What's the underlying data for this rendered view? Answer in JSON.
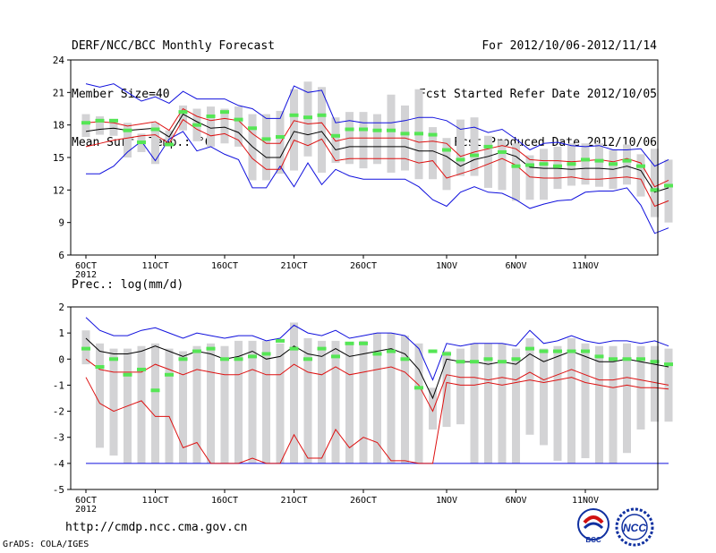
{
  "header": {
    "title": "DERF/NCC/BCC Monthly Forecast",
    "member_size": "Member Size=40",
    "variable": "Mean Surf. Temp.: °C",
    "period": "For 2012/10/06-2012/11/14",
    "started": "Fcst Started Refer Date 2012/10/05",
    "produced": "Fcst Produced Date 2012/10/06"
  },
  "footer": {
    "url": "http://cmdp.ncc.cma.gov.cn",
    "grads": "GrADS: COLA/IGES",
    "logo_bcc": "BCC",
    "logo_ncc": "NCC"
  },
  "colors": {
    "box": "#d3d3d5",
    "median": "#55e655",
    "mean": "#000000",
    "inner": "#dd1111",
    "outer": "#1010dd"
  },
  "chart_data": [
    {
      "type": "box-ensemble",
      "title": "Mean Surf. Temp.: °C",
      "ylim": [
        6,
        24
      ],
      "yticks": [
        6,
        9,
        12,
        15,
        18,
        21,
        24
      ],
      "xticks": [
        {
          "label": "6OCT",
          "sub": "2012",
          "day": 0
        },
        {
          "label": "11OCT",
          "day": 5
        },
        {
          "label": "16OCT",
          "day": 10
        },
        {
          "label": "21OCT",
          "day": 15
        },
        {
          "label": "26OCT",
          "day": 20
        },
        {
          "label": "1NOV",
          "day": 26
        },
        {
          "label": "6NOV",
          "day": 31
        },
        {
          "label": "11NOV",
          "day": 36
        }
      ],
      "series": {
        "mean": [
          17.4,
          17.6,
          17.7,
          17.5,
          17.6,
          17.7,
          16.9,
          19.0,
          18.3,
          17.7,
          17.8,
          17.3,
          16.0,
          15.0,
          15.0,
          17.4,
          17.1,
          17.4,
          15.7,
          16.0,
          16.0,
          16.0,
          16.0,
          16.0,
          15.6,
          15.6,
          15.1,
          14.2,
          14.8,
          15.1,
          15.5,
          15.1,
          14.1,
          14.0,
          14.0,
          13.9,
          14.0,
          14.0,
          13.9,
          14.2,
          13.8,
          11.8,
          12.2
        ],
        "upper1": [
          18.2,
          18.3,
          18.2,
          17.9,
          18.1,
          18.3,
          17.5,
          19.5,
          18.8,
          18.4,
          18.6,
          18.4,
          17.2,
          16.3,
          16.3,
          18.4,
          18.1,
          18.2,
          16.5,
          16.8,
          16.8,
          16.8,
          16.8,
          16.8,
          16.4,
          16.5,
          16.3,
          15.1,
          15.5,
          15.8,
          16.1,
          15.8,
          14.8,
          14.7,
          14.7,
          14.6,
          14.7,
          14.8,
          14.6,
          14.9,
          14.5,
          12.3,
          12.9
        ],
        "lower1": [
          16.0,
          16.3,
          16.6,
          16.8,
          17.0,
          17.1,
          16.3,
          18.5,
          17.6,
          17.0,
          17.2,
          16.6,
          14.9,
          13.9,
          13.9,
          16.6,
          16.1,
          16.7,
          14.7,
          14.9,
          14.9,
          14.9,
          14.9,
          14.9,
          14.5,
          14.7,
          13.1,
          13.5,
          13.9,
          14.4,
          14.9,
          14.3,
          13.2,
          13.1,
          13.1,
          13.2,
          13.0,
          13.0,
          13.1,
          13.2,
          13.0,
          10.5,
          11.0
        ],
        "upper2": [
          21.8,
          21.5,
          21.8,
          21.0,
          20.2,
          20.6,
          20.0,
          21.1,
          20.4,
          20.4,
          20.4,
          19.8,
          19.5,
          18.6,
          18.6,
          21.6,
          21.0,
          21.2,
          18.2,
          18.4,
          18.2,
          18.2,
          18.2,
          18.4,
          18.7,
          18.7,
          18.4,
          17.6,
          17.8,
          17.3,
          17.6,
          16.7,
          15.7,
          16.3,
          16.4,
          16.1,
          16.0,
          16.1,
          15.7,
          15.7,
          15.8,
          14.2,
          14.8
        ],
        "lower2": [
          13.5,
          13.5,
          14.2,
          15.5,
          16.5,
          14.7,
          16.7,
          17.4,
          15.6,
          16.0,
          15.3,
          14.8,
          12.2,
          12.2,
          14.2,
          12.3,
          14.5,
          12.5,
          13.9,
          13.3,
          13.0,
          13.0,
          13.0,
          13.0,
          12.3,
          11.1,
          10.5,
          11.8,
          12.3,
          11.8,
          11.7,
          11.1,
          10.3,
          10.7,
          11.0,
          11.1,
          11.8,
          11.9,
          11.9,
          12.2,
          10.6,
          8.0,
          8.5
        ],
        "box_hi": [
          19.0,
          18.8,
          18.5,
          18.2,
          17.2,
          18.2,
          17.5,
          19.8,
          19.5,
          19.7,
          19.5,
          19.7,
          19.0,
          19.0,
          19.3,
          21.3,
          22.0,
          21.5,
          18.7,
          19.2,
          19.2,
          19.0,
          20.8,
          19.8,
          21.3,
          17.8,
          16.8,
          18.5,
          18.7,
          17.0,
          16.6,
          16.3,
          15.2,
          15.8,
          16.0,
          16.3,
          16.3,
          16.3,
          15.7,
          16.2,
          15.3,
          15.8,
          14.8
        ],
        "box_lo": [
          16.9,
          17.1,
          17.0,
          15.0,
          15.5,
          14.4,
          16.5,
          17.5,
          16.5,
          16.0,
          16.3,
          16.0,
          12.9,
          12.9,
          13.5,
          13.8,
          15.1,
          13.6,
          14.5,
          14.4,
          14.0,
          14.4,
          13.6,
          13.8,
          13.0,
          13.0,
          12.0,
          13.3,
          13.3,
          12.2,
          12.0,
          11.0,
          11.1,
          11.1,
          12.1,
          12.4,
          12.5,
          12.3,
          12.1,
          12.5,
          11.4,
          9.5,
          9.0
        ],
        "median": [
          18.2,
          18.4,
          18.4,
          17.5,
          16.4,
          17.6,
          16.2,
          19.2,
          18.0,
          18.8,
          19.2,
          18.5,
          17.7,
          16.7,
          16.9,
          18.9,
          18.7,
          18.9,
          17.0,
          17.6,
          17.6,
          17.5,
          17.5,
          17.2,
          17.2,
          17.1,
          15.7,
          14.8,
          15.2,
          16.0,
          15.5,
          14.2,
          14.3,
          14.4,
          14.2,
          14.4,
          14.8,
          14.7,
          14.4,
          14.7,
          14.2,
          12.0,
          12.4
        ]
      }
    },
    {
      "type": "box-ensemble",
      "title": "Prec.: log(mm/d)",
      "ylim": [
        -5,
        2
      ],
      "yticks": [
        -5,
        -4,
        -3,
        -2,
        -1,
        0,
        1,
        2
      ],
      "xticks": [
        {
          "label": "6OCT",
          "sub": "2012",
          "day": 0
        },
        {
          "label": "11OCT",
          "day": 5
        },
        {
          "label": "16OCT",
          "day": 10
        },
        {
          "label": "21OCT",
          "day": 15
        },
        {
          "label": "26OCT",
          "day": 20
        },
        {
          "label": "1NOV",
          "day": 26
        },
        {
          "label": "6NOV",
          "day": 31
        },
        {
          "label": "11NOV",
          "day": 36
        }
      ],
      "series": {
        "mean": [
          0.8,
          0.3,
          0.2,
          0.2,
          0.3,
          0.5,
          0.3,
          0.1,
          0.3,
          0.2,
          0.0,
          0.1,
          0.3,
          0.0,
          0.1,
          0.5,
          0.2,
          0.1,
          0.4,
          0.1,
          0.2,
          0.3,
          0.4,
          0.2,
          -0.4,
          -1.5,
          0.0,
          -0.1,
          -0.1,
          -0.2,
          -0.1,
          -0.2,
          0.2,
          -0.1,
          0.1,
          0.3,
          0.1,
          -0.1,
          -0.1,
          0.0,
          -0.1,
          -0.2,
          -0.3
        ],
        "upper": [
          1.6,
          1.1,
          0.9,
          0.9,
          1.1,
          1.2,
          1.0,
          0.8,
          1.0,
          0.9,
          0.8,
          0.9,
          0.9,
          0.7,
          0.8,
          1.3,
          1.0,
          0.9,
          1.1,
          0.8,
          0.9,
          1.0,
          1.0,
          0.9,
          0.4,
          -0.8,
          0.6,
          0.5,
          0.6,
          0.6,
          0.6,
          0.5,
          1.1,
          0.6,
          0.7,
          0.9,
          0.7,
          0.6,
          0.7,
          0.7,
          0.6,
          0.7,
          0.5
        ],
        "lower1": [
          0.0,
          -0.4,
          -0.5,
          -0.5,
          -0.5,
          -0.2,
          -0.4,
          -0.6,
          -0.4,
          -0.5,
          -0.6,
          -0.6,
          -0.4,
          -0.6,
          -0.6,
          -0.2,
          -0.5,
          -0.6,
          -0.3,
          -0.6,
          -0.5,
          -0.4,
          -0.3,
          -0.5,
          -1.0,
          -2.0,
          -0.6,
          -0.7,
          -0.7,
          -0.8,
          -0.7,
          -0.8,
          -0.5,
          -0.8,
          -0.6,
          -0.4,
          -0.6,
          -0.8,
          -0.8,
          -0.7,
          -0.8,
          -0.9,
          -1.0
        ],
        "lower2": [
          -0.7,
          -1.7,
          -2.0,
          -1.8,
          -1.6,
          -2.2,
          -2.2,
          -3.4,
          -3.2,
          -4.0,
          -4.0,
          -4.0,
          -3.8,
          -4.0,
          -4.0,
          -2.9,
          -3.8,
          -3.8,
          -2.7,
          -3.4,
          -3.0,
          -3.2,
          -3.9,
          -3.9,
          -4.0,
          -4.0,
          -0.9,
          -1.0,
          -1.0,
          -0.9,
          -1.0,
          -0.9,
          -0.8,
          -0.9,
          -0.8,
          -0.7,
          -0.9,
          -1.0,
          -1.1,
          -1.0,
          -1.1,
          -1.1,
          -1.15
        ],
        "lower3": [
          -4,
          -4,
          -4,
          -4,
          -4,
          -4,
          -4,
          -4,
          -4,
          -4,
          -4,
          -4,
          -4,
          -4,
          -4,
          -4,
          -4,
          -4,
          -4,
          -4,
          -4,
          -4,
          -4,
          -4,
          -4,
          -4,
          -4,
          -4,
          -4,
          -4,
          -4,
          -4,
          -4,
          -4,
          -4,
          -4,
          -4,
          -4,
          -4,
          -4,
          -4,
          -4,
          -4
        ],
        "box_hi": [
          1.1,
          0.6,
          0.4,
          0.4,
          0.5,
          0.6,
          0.4,
          0.3,
          0.5,
          0.6,
          0.5,
          0.7,
          0.7,
          0.7,
          0.6,
          1.4,
          0.8,
          0.7,
          0.7,
          0.6,
          0.7,
          1.0,
          1.0,
          0.9,
          0.6,
          -1.1,
          0.3,
          0.4,
          0.6,
          0.6,
          0.6,
          0.4,
          0.8,
          0.4,
          0.5,
          0.8,
          0.6,
          0.5,
          0.5,
          0.6,
          0.5,
          0.5,
          0.4
        ],
        "box_lo": [
          -0.2,
          -3.4,
          -3.7,
          -4.0,
          -4.0,
          -4.0,
          -4.0,
          -4.0,
          -4.0,
          -4.0,
          -4.0,
          -4.0,
          -4.0,
          -4.0,
          -4.0,
          -4.0,
          -4.0,
          -4.0,
          -4.0,
          -4.0,
          -4.0,
          -4.0,
          -4.0,
          -4.0,
          -4.0,
          -2.7,
          -2.6,
          -2.5,
          -4.0,
          -4.0,
          -4.0,
          -4.0,
          -2.9,
          -3.3,
          -3.9,
          -4.0,
          -3.8,
          -4.0,
          -4.0,
          -3.6,
          -2.7,
          -2.4,
          -2.4
        ],
        "median": [
          0.4,
          -0.3,
          0.0,
          -0.6,
          -0.4,
          -1.2,
          -0.6,
          0.0,
          0.3,
          0.4,
          0.0,
          0.0,
          0.1,
          0.2,
          0.7,
          0.4,
          0.0,
          0.4,
          0.1,
          0.6,
          0.6,
          0.2,
          0.3,
          0.0,
          -1.1,
          0.3,
          0.2,
          -0.1,
          -0.1,
          0.0,
          -0.1,
          0.0,
          0.4,
          0.3,
          0.3,
          0.3,
          0.3,
          0.1,
          0.0,
          0.0,
          0.0,
          -0.1,
          -0.2
        ]
      }
    }
  ]
}
